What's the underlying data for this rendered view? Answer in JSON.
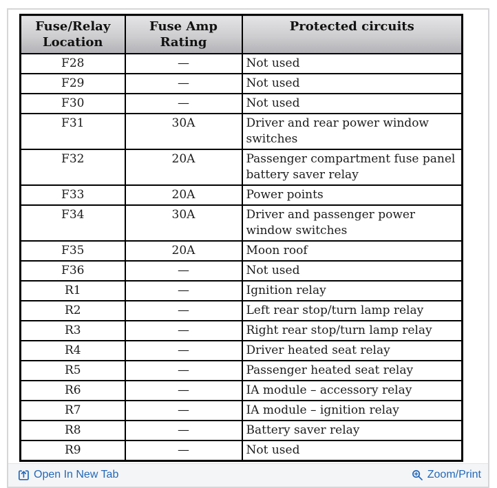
{
  "widget": {
    "description": "Fuse and relay specification chart viewer"
  },
  "table": {
    "headers": [
      "Fuse/Relay Location",
      "Fuse Amp Rating",
      "Protected circuits"
    ],
    "rows": [
      {
        "location": "F28",
        "rating": "—",
        "circuit": "Not used"
      },
      {
        "location": "F29",
        "rating": "—",
        "circuit": "Not used"
      },
      {
        "location": "F30",
        "rating": "—",
        "circuit": "Not used"
      },
      {
        "location": "F31",
        "rating": "30A",
        "circuit": "Driver and rear power window switches"
      },
      {
        "location": "F32",
        "rating": "20A",
        "circuit": "Passenger compartment fuse panel battery saver relay"
      },
      {
        "location": "F33",
        "rating": "20A",
        "circuit": "Power points"
      },
      {
        "location": "F34",
        "rating": "30A",
        "circuit": "Driver and passenger power window switches"
      },
      {
        "location": "F35",
        "rating": "20A",
        "circuit": "Moon roof"
      },
      {
        "location": "F36",
        "rating": "—",
        "circuit": "Not used"
      },
      {
        "location": "R1",
        "rating": "—",
        "circuit": "Ignition relay"
      },
      {
        "location": "R2",
        "rating": "—",
        "circuit": "Left rear stop/turn lamp relay"
      },
      {
        "location": "R3",
        "rating": "—",
        "circuit": "Right rear stop/turn lamp relay"
      },
      {
        "location": "R4",
        "rating": "—",
        "circuit": "Driver heated seat relay"
      },
      {
        "location": "R5",
        "rating": "—",
        "circuit": "Passenger heated seat relay"
      },
      {
        "location": "R6",
        "rating": "—",
        "circuit": "IA module – accessory relay"
      },
      {
        "location": "R7",
        "rating": "—",
        "circuit": "IA module – ignition relay"
      },
      {
        "location": "R8",
        "rating": "—",
        "circuit": "Battery saver relay"
      },
      {
        "location": "R9",
        "rating": "—",
        "circuit": "Not used"
      }
    ]
  },
  "footer": {
    "open_in_new_tab_label": "Open In New Tab",
    "zoom_print_label": "Zoom/Print",
    "icons": {
      "open_in_new_tab": "open-in-new-tab-icon",
      "zoom_print": "magnifier-plus-icon"
    }
  },
  "colors": {
    "link_blue": "#2368b8",
    "table_border": "#000000",
    "header_gradient_top": "#e4e4e6",
    "header_gradient_bottom": "#b2b2b6",
    "widget_border": "#d6d6d8",
    "footer_background": "#f4f5f7"
  }
}
